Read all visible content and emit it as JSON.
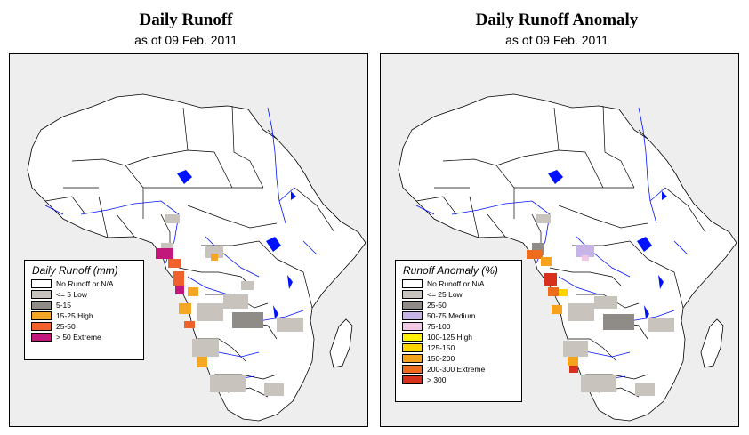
{
  "left": {
    "title": "Daily Runoff",
    "subtitle": "as of 09 Feb. 2011",
    "legend_title": "Daily Runoff (mm)",
    "legend": [
      {
        "label": "No Runoff or N/A",
        "color": "#ffffff"
      },
      {
        "label": "<= 5  Low",
        "color": "#c8c4bd"
      },
      {
        "label": "5-15",
        "color": "#8f8c88"
      },
      {
        "label": "15-25 High",
        "color": "#f5a623"
      },
      {
        "label": "25-50",
        "color": "#f0622d"
      },
      {
        "label": "> 50  Extreme",
        "color": "#c2187c"
      }
    ]
  },
  "right": {
    "title": "Daily Runoff Anomaly",
    "subtitle": "as of 09 Feb. 2011",
    "legend_title": "Runoff Anomaly (%)",
    "legend": [
      {
        "label": "No Runoff or N/A",
        "color": "#ffffff"
      },
      {
        "label": "<= 25     Low",
        "color": "#c8c4bd"
      },
      {
        "label": "25-50",
        "color": "#8f8c88"
      },
      {
        "label": "50-75    Medium",
        "color": "#c6b3e8"
      },
      {
        "label": "75-100",
        "color": "#f3c6e3"
      },
      {
        "label": "100-125  High",
        "color": "#fff200"
      },
      {
        "label": "125-150",
        "color": "#ffd400"
      },
      {
        "label": "150-200",
        "color": "#f7a21b"
      },
      {
        "label": "200-300  Extreme",
        "color": "#ef6c1e"
      },
      {
        "label": "> 300",
        "color": "#d7301f"
      }
    ]
  },
  "colors": {
    "water": "#0011ff",
    "land": "#ffffff",
    "ocean": "#eeeeee",
    "border": "#000000"
  }
}
